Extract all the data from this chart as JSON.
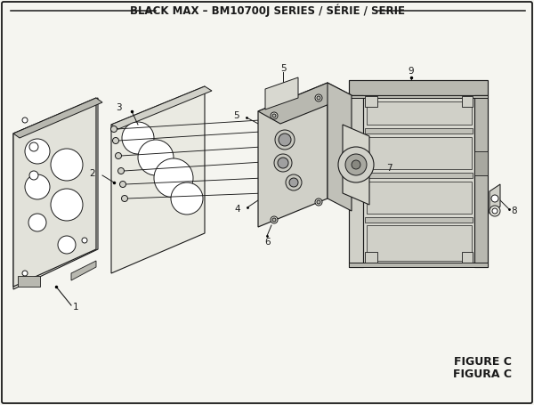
{
  "title": "BLACK MAX – BM10700J SERIES / SÉRIE / SERIE",
  "figure_label": "FIGURE C",
  "figura_label": "FIGURA C",
  "bg_color": "#f5f5f0",
  "border_color": "#1a1a1a",
  "line_color": "#1a1a1a",
  "text_color": "#1a1a1a",
  "fill_light": "#e8e8e0",
  "fill_mid": "#d0d0c8",
  "fill_dark": "#b8b8b0",
  "title_fontsize": 8.5,
  "label_fontsize": 7.5,
  "figure_label_fontsize": 9
}
